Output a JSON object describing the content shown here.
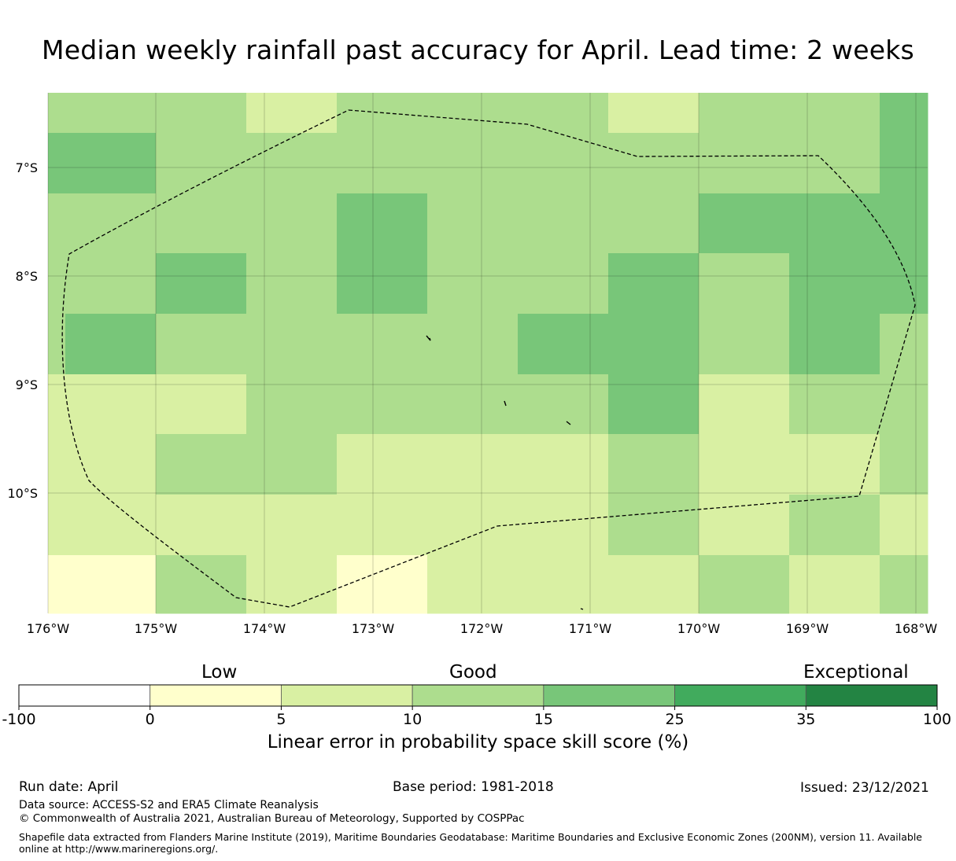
{
  "title": "Median weekly rainfall past accuracy for April. Lead time: 2 weeks",
  "map": {
    "lon_range": [
      -176,
      -167.9
    ],
    "lat_range": [
      -11.15,
      -6.35
    ],
    "lat_ticks": [
      "7°S",
      "8°S",
      "9°S",
      "10°S"
    ],
    "lon_ticks": [
      "176°W",
      "175°W",
      "174°W",
      "173°W",
      "172°W",
      "171°W",
      "170°W",
      "169°W",
      "168°W"
    ],
    "grid": true,
    "skill_grid": {
      "description_units": "category index into colorbar.colors",
      "rows": [
        [
          3,
          3,
          2,
          3,
          3,
          3,
          2,
          3,
          3,
          4
        ],
        [
          4,
          3,
          3,
          3,
          3,
          3,
          3,
          3,
          3,
          4
        ],
        [
          3,
          3,
          3,
          4,
          3,
          3,
          3,
          4,
          4,
          4
        ],
        [
          3,
          4,
          3,
          4,
          3,
          3,
          4,
          3,
          4,
          4
        ],
        [
          4,
          3,
          3,
          3,
          3,
          4,
          4,
          3,
          4,
          3
        ],
        [
          2,
          2,
          3,
          3,
          3,
          3,
          4,
          2,
          3,
          3
        ],
        [
          2,
          3,
          3,
          2,
          2,
          2,
          3,
          2,
          2,
          3
        ],
        [
          2,
          2,
          2,
          2,
          2,
          2,
          3,
          2,
          3,
          2
        ],
        [
          1,
          3,
          2,
          1,
          2,
          2,
          2,
          3,
          2,
          3
        ]
      ]
    },
    "eez_boundary": true
  },
  "colorbar": {
    "category_words": [
      "Low",
      "Good",
      "Exceptional"
    ],
    "tick_labels": [
      "-100",
      "0",
      "5",
      "10",
      "15",
      "25",
      "35",
      "100"
    ],
    "colors": [
      "#ffffff",
      "#ffffcc",
      "#d9f0a3",
      "#addd8e",
      "#78c679",
      "#41ab5d",
      "#238443"
    ],
    "label": "Linear error in probability space skill score (%)"
  },
  "footer": {
    "run_date": "Run date: April",
    "base_period": "Base period: 1981-2018",
    "issued": "Issued: 23/12/2021",
    "data_source": "Data source: ACCESS-S2 and ERA5 Climate Reanalysis",
    "copyright": "© Commonwealth of Australia 2021, Australian Bureau of Meteorology, Supported by COSPPac",
    "shapefile_note": "Shapefile data extracted from Flanders Marine Institute (2019), Maritime Boundaries Geodatabase: Maritime Boundaries and Exclusive Economic Zones (200NM), version 11. Available online at http://www.marineregions.org/."
  }
}
